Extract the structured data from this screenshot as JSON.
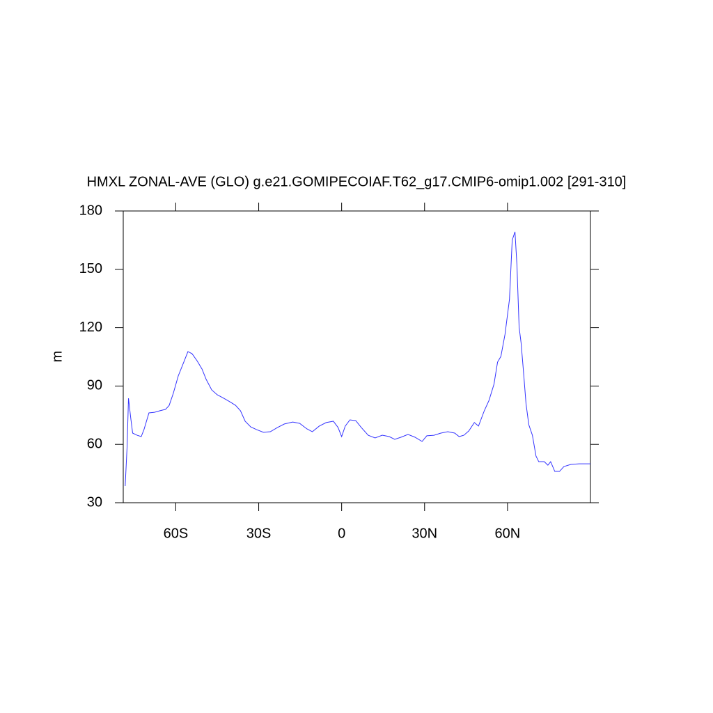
{
  "chart_data": {
    "type": "line",
    "title": "HMXL ZONAL-AVE (GLO) g.e21.GOMIPECOIAF.T62_g17.CMIP6-omip1.002 [291-310]",
    "ylabel": "m",
    "xlim": [
      -79,
      90
    ],
    "ylim": [
      30,
      180
    ],
    "xticks": [
      {
        "value": -60,
        "label": "60S"
      },
      {
        "value": -30,
        "label": "30S"
      },
      0,
      {
        "value": 30,
        "label": "30N"
      },
      {
        "value": 60,
        "label": "60N"
      }
    ],
    "yticks": [
      30,
      60,
      90,
      120,
      150,
      180
    ],
    "series": [
      {
        "color": "#3333ff",
        "x": [
          -78.3,
          -77.6,
          -77.1,
          -76.3,
          -75.6,
          -74,
          -72.5,
          -71.5,
          -69.7,
          -67.7,
          -65.7,
          -63.7,
          -62.4,
          -60.9,
          -59.1,
          -57.1,
          -55.6,
          -54.1,
          -52.3,
          -50.5,
          -49,
          -47,
          -45,
          -43,
          -40.9,
          -38.4,
          -36.6,
          -34.9,
          -32.9,
          -30.8,
          -28.3,
          -25.8,
          -23.2,
          -20.7,
          -17.7,
          -15.2,
          -12.6,
          -10.6,
          -8.1,
          -5.6,
          -3,
          -1.3,
          0,
          1.3,
          3,
          5.1,
          7.1,
          9.6,
          12.1,
          14.7,
          17.2,
          19.2,
          21.5,
          24,
          26.5,
          29.1,
          30.8,
          33.4,
          35.9,
          38.4,
          40.9,
          42.5,
          44.2,
          46,
          48,
          49.5,
          51.6,
          53.3,
          55.1,
          56.4,
          57.6,
          59.1,
          60.7,
          61.7,
          62.7,
          63.4,
          64.2,
          64.9,
          65.7,
          66.7,
          67.7,
          69,
          70.3,
          71.3,
          73.3,
          74.6,
          75.6,
          77.1,
          78.8,
          80.4,
          82.9,
          85.9,
          90
        ],
        "values": [
          38.6,
          59,
          83.7,
          73.7,
          65.8,
          64.7,
          64,
          67.6,
          76.2,
          76.5,
          77.3,
          78,
          80,
          86.2,
          95.2,
          102.3,
          107.7,
          106.6,
          103,
          98.7,
          93.4,
          88,
          85.5,
          84,
          82.3,
          80.1,
          77.3,
          71.9,
          69,
          67.6,
          66.2,
          66.5,
          68.7,
          70.5,
          71.5,
          70.8,
          68,
          66.5,
          69.4,
          71.2,
          71.9,
          68.7,
          64,
          69.4,
          72.6,
          72.2,
          68.7,
          64.7,
          63.3,
          64.7,
          64,
          62.6,
          63.7,
          65.1,
          63.7,
          61.5,
          64.4,
          64.7,
          65.8,
          66.5,
          65.8,
          64,
          64.7,
          66.9,
          71.2,
          69.4,
          77.3,
          82.6,
          90.9,
          102.3,
          105.2,
          116.6,
          134.5,
          165,
          169.3,
          152.4,
          120.2,
          112.3,
          98.7,
          80.8,
          70.1,
          64.7,
          54,
          51.1,
          51.1,
          49.3,
          51.1,
          46.1,
          46.1,
          48.6,
          49.7,
          50,
          50
        ]
      }
    ]
  }
}
